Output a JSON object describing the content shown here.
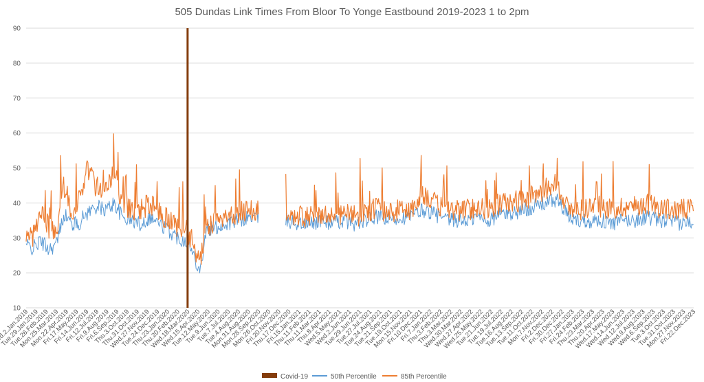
{
  "chart_data": {
    "type": "line",
    "title": "505 Dundas Link Times From Bloor To Yonge Eastbound 2019-2023 1 to 2pm",
    "xlabel": "",
    "ylabel": "",
    "ylim": [
      10,
      90
    ],
    "yticks": [
      10,
      20,
      30,
      40,
      50,
      60,
      70,
      80,
      90
    ],
    "grid": true,
    "legend_position": "bottom",
    "x_tick_labels": [
      "Wed.2.Jan.2019",
      "Tue.29.Jan.2019",
      "Tue.26.Feb.2019",
      "Mon.25.Mar.2019",
      "Mon.22.Apr.2019",
      "Fri.17.May.2019",
      "Fri.14.Jun.2019",
      "Fri.12.Jul.2019",
      "Fri.9.Aug.2019",
      "Fri.6.Sep.2019",
      "Thu.3.Oct.2019",
      "Thu.31.Oct.2019",
      "Wed.27.Nov.2019",
      "Tue.24.Dec.2019",
      "Thu.23.Jan.2020",
      "Thu.20.Feb.2020",
      "Wed.18.Mar.2020",
      "Wed.15.Apr.2020",
      "Tue.12.May.2020",
      "Tue.9.Jun.2020",
      "Tue.7.Jul.2020",
      "Tue.4.Aug.2020",
      "Mon.31.Aug.2020",
      "Mon.28.Sep.2020",
      "Mon.26.Oct.2020",
      "Fri.20.Nov.2020",
      "Thu.17.Dec.2020",
      "Fri.15.Jan.2021",
      "Thu.11.Feb.2021",
      "Thu.11.Mar.2021",
      "Thu.8.Apr.2021",
      "Wed.5.May.2021",
      "Wed.2.Jun.2021",
      "Tue.29.Jun.2021",
      "Tue.27.Jul.2021",
      "Tue.24.Aug.2021",
      "Tue.21.Sep.2021",
      "Tue.19.Oct.2021",
      "Mon.15.Nov.2021",
      "Fri.10.Dec.2021",
      "Fri.7.Jan.2022",
      "Thu.3.Feb.2022",
      "Thu.3.Mar.2022",
      "Wed.30.Mar.2022",
      "Wed.27.Apr.2022",
      "Wed.25.May.2022",
      "Tue.21.Jun.2022",
      "Tue.19.Jul.2022",
      "Tue.16.Aug.2022",
      "Tue.13.Sep.2022",
      "Tue.11.Oct.2022",
      "Mon.7.Nov.2022",
      "Fri.2.Dec.2022",
      "Fri.30.Dec.2022",
      "Fri.27.Jan.2023",
      "Fri.24.Feb.2023",
      "Thu.23.Mar.2023",
      "Thu.20.Apr.2023",
      "Wed.17.May.2023",
      "Wed.14.Jun.2023",
      "Wed.12.Jul.2023",
      "Wed.9.Aug.2023",
      "Wed.6.Sep.2023",
      "Tue.3.Oct.2023",
      "Tue.31.Oct.2023",
      "Mon.27.Nov.2023",
      "Fri.22.Dec.2023"
    ],
    "annotation": {
      "name": "Covid-19",
      "x": "Mon.16.Mar.2020",
      "value": 90,
      "color": "#843c0c"
    },
    "series": [
      {
        "name": "50th Percentile",
        "color": "#5b9bd5",
        "points": [
          [
            "2019-01-02",
            28
          ],
          [
            "2019-01-20",
            27
          ],
          [
            "2019-02-10",
            29
          ],
          [
            "2019-03-05",
            27
          ],
          [
            "2019-03-25",
            28
          ],
          [
            "2019-04-15",
            37
          ],
          [
            "2019-05-05",
            34
          ],
          [
            "2019-05-25",
            34
          ],
          [
            "2019-06-15",
            37
          ],
          [
            "2019-07-10",
            39
          ],
          [
            "2019-08-05",
            38
          ],
          [
            "2019-08-30",
            40
          ],
          [
            "2019-09-20",
            36
          ],
          [
            "2019-10-15",
            35
          ],
          [
            "2019-11-10",
            34
          ],
          [
            "2019-12-05",
            36
          ],
          [
            "2020-01-01",
            34
          ],
          [
            "2020-01-25",
            32
          ],
          [
            "2020-02-20",
            30
          ],
          [
            "2020-03-16",
            29
          ],
          [
            "2020-04-05",
            24
          ],
          [
            "2020-04-20",
            21
          ],
          [
            "2020-05-05",
            32
          ],
          [
            "2020-06-01",
            33
          ],
          [
            "2020-07-01",
            34
          ],
          [
            "2020-08-01",
            35
          ],
          [
            "2020-09-01",
            36
          ],
          [
            "2020-09-20",
            36
          ],
          [
            "2020-12-10",
            35
          ],
          [
            "2021-01-15",
            34
          ],
          [
            "2021-02-15",
            34
          ],
          [
            "2021-03-15",
            35
          ],
          [
            "2021-04-15",
            34
          ],
          [
            "2021-05-15",
            35
          ],
          [
            "2021-06-15",
            34
          ],
          [
            "2021-07-15",
            35
          ],
          [
            "2021-08-15",
            36
          ],
          [
            "2021-09-15",
            35
          ],
          [
            "2021-10-15",
            36
          ],
          [
            "2021-11-15",
            36
          ],
          [
            "2021-12-15",
            38
          ],
          [
            "2022-01-15",
            37
          ],
          [
            "2022-02-15",
            35
          ],
          [
            "2022-03-15",
            35
          ],
          [
            "2022-04-15",
            35
          ],
          [
            "2022-05-15",
            36
          ],
          [
            "2022-06-15",
            35
          ],
          [
            "2022-07-15",
            37
          ],
          [
            "2022-08-15",
            37
          ],
          [
            "2022-09-15",
            38
          ],
          [
            "2022-10-15",
            39
          ],
          [
            "2022-11-15",
            40
          ],
          [
            "2022-12-15",
            41
          ],
          [
            "2023-01-15",
            36
          ],
          [
            "2023-02-15",
            35
          ],
          [
            "2023-03-15",
            35
          ],
          [
            "2023-04-15",
            35
          ],
          [
            "2023-05-15",
            34
          ],
          [
            "2023-06-15",
            35
          ],
          [
            "2023-07-15",
            35
          ],
          [
            "2023-08-15",
            36
          ],
          [
            "2023-09-15",
            35
          ],
          [
            "2023-10-15",
            35
          ],
          [
            "2023-11-15",
            34
          ],
          [
            "2023-12-22",
            35
          ]
        ]
      },
      {
        "name": "85th Percentile",
        "color": "#ed7d31",
        "points": [
          [
            "2019-01-02",
            31
          ],
          [
            "2019-01-20",
            30
          ],
          [
            "2019-02-10",
            38
          ],
          [
            "2019-03-05",
            33
          ],
          [
            "2019-03-25",
            31
          ],
          [
            "2019-04-15",
            45
          ],
          [
            "2019-05-05",
            38
          ],
          [
            "2019-05-25",
            40
          ],
          [
            "2019-06-15",
            50
          ],
          [
            "2019-07-10",
            45
          ],
          [
            "2019-08-05",
            44
          ],
          [
            "2019-08-30",
            49
          ],
          [
            "2019-09-20",
            39
          ],
          [
            "2019-10-15",
            38
          ],
          [
            "2019-11-10",
            38
          ],
          [
            "2019-12-05",
            40
          ],
          [
            "2020-01-01",
            37
          ],
          [
            "2020-01-25",
            35
          ],
          [
            "2020-02-20",
            33
          ],
          [
            "2020-03-16",
            32
          ],
          [
            "2020-04-05",
            27
          ],
          [
            "2020-04-20",
            23
          ],
          [
            "2020-05-05",
            33
          ],
          [
            "2020-06-01",
            35
          ],
          [
            "2020-07-01",
            36
          ],
          [
            "2020-08-01",
            37
          ],
          [
            "2020-09-01",
            38
          ],
          [
            "2020-09-20",
            38
          ],
          [
            "2020-12-10",
            37
          ],
          [
            "2021-01-15",
            36
          ],
          [
            "2021-02-15",
            36
          ],
          [
            "2021-03-15",
            37
          ],
          [
            "2021-04-15",
            36
          ],
          [
            "2021-05-15",
            37
          ],
          [
            "2021-06-15",
            36
          ],
          [
            "2021-07-15",
            37
          ],
          [
            "2021-08-15",
            39
          ],
          [
            "2021-09-15",
            37
          ],
          [
            "2021-10-15",
            38
          ],
          [
            "2021-11-15",
            38
          ],
          [
            "2021-12-15",
            43
          ],
          [
            "2022-01-15",
            40
          ],
          [
            "2022-02-15",
            38
          ],
          [
            "2022-03-15",
            38
          ],
          [
            "2022-04-15",
            38
          ],
          [
            "2022-05-15",
            39
          ],
          [
            "2022-06-15",
            38
          ],
          [
            "2022-07-15",
            40
          ],
          [
            "2022-08-15",
            40
          ],
          [
            "2022-09-15",
            41
          ],
          [
            "2022-10-15",
            42
          ],
          [
            "2022-11-15",
            44
          ],
          [
            "2022-12-15",
            46
          ],
          [
            "2023-01-15",
            38
          ],
          [
            "2023-02-15",
            38
          ],
          [
            "2023-03-15",
            39
          ],
          [
            "2023-04-15",
            39
          ],
          [
            "2023-05-15",
            38
          ],
          [
            "2023-06-15",
            39
          ],
          [
            "2023-07-15",
            39
          ],
          [
            "2023-08-15",
            40
          ],
          [
            "2023-09-15",
            39
          ],
          [
            "2023-10-15",
            38
          ],
          [
            "2023-11-15",
            38
          ],
          [
            "2023-12-22",
            38
          ]
        ]
      }
    ]
  }
}
